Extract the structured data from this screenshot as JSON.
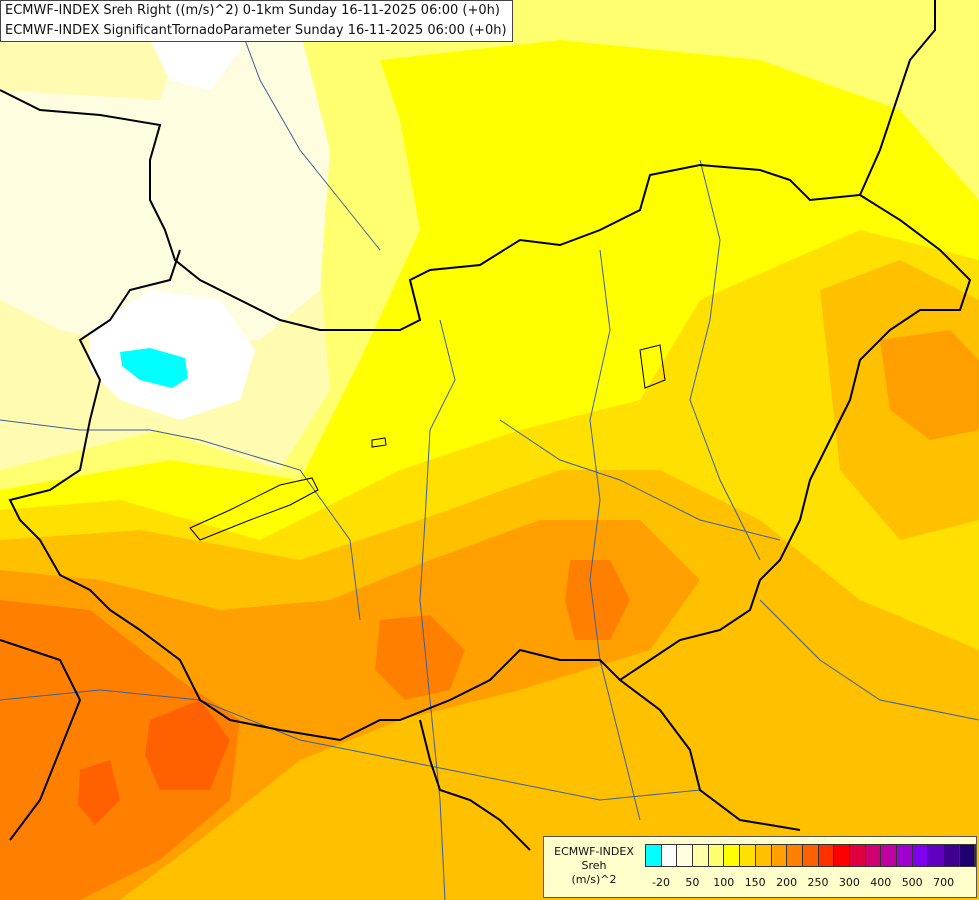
{
  "titles": {
    "line1": "ECMWF-INDEX Sreh Right ((m/s)^2) 0-1km Sunday 16-11-2025 06:00 (+0h)",
    "line2": "ECMWF-INDEX SignificantTornadoParameter Sunday 16-11-2025 06:00 (+0h)"
  },
  "legend": {
    "model": "ECMWF-INDEX",
    "parameter": "Sreh",
    "unit": "(m/s)^2",
    "colors": [
      "#00ffff",
      "#ffffff",
      "#ffffe0",
      "#ffffa8",
      "#ffff70",
      "#ffff00",
      "#ffe000",
      "#ffc000",
      "#ffa000",
      "#ff8000",
      "#ff6000",
      "#ff3000",
      "#ff0000",
      "#e00040",
      "#d00070",
      "#c000a0",
      "#a000d0",
      "#8000f0",
      "#6000c0",
      "#400090",
      "#200070"
    ],
    "ticks": [
      {
        "label": "-20",
        "index": 1
      },
      {
        "label": "50",
        "index": 2
      },
      {
        "label": "100",
        "index": 3
      },
      {
        "label": "150",
        "index": 4
      },
      {
        "label": "200",
        "index": 5
      },
      {
        "label": "250",
        "index": 6
      },
      {
        "label": "300",
        "index": 7
      },
      {
        "label": "400",
        "index": 8
      },
      {
        "label": "500",
        "index": 9
      },
      {
        "label": "700",
        "index": 10
      }
    ]
  },
  "map_colors": {
    "base": "#fffbb0",
    "pale": "#fffde0",
    "light_yellow": "#ffff70",
    "yellow": "#ffff00",
    "gold": "#ffe000",
    "amber": "#ffc000",
    "orange": "#ffa000",
    "deep_orange": "#ff8000",
    "red_orange": "#ff6000",
    "white": "#ffffff",
    "cyan": "#00ffff",
    "border": "#000000",
    "river": "#3a5f9a"
  }
}
